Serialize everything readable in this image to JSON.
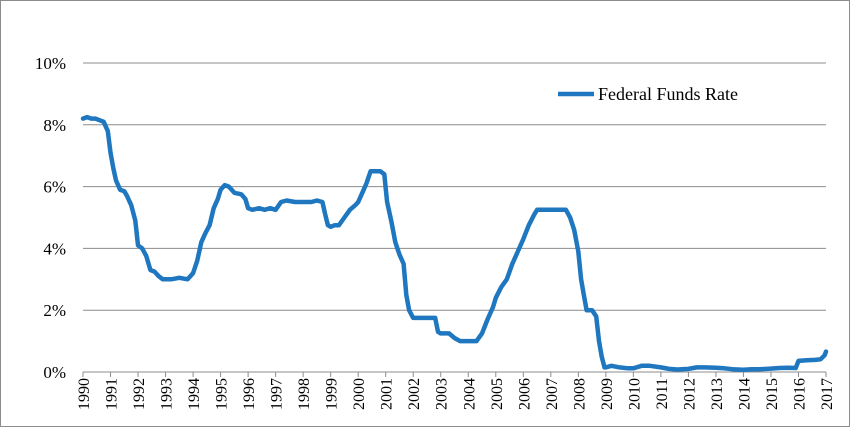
{
  "chart_data": {
    "type": "line",
    "title": "",
    "xlabel": "",
    "ylabel": "",
    "xlim": [
      1990,
      2017
    ],
    "ylim": [
      0,
      10
    ],
    "y_ticks": [
      0,
      2,
      4,
      6,
      8,
      10
    ],
    "y_tick_labels": [
      "0%",
      "2%",
      "4%",
      "6%",
      "8%",
      "10%"
    ],
    "x_ticks": [
      1990,
      1991,
      1992,
      1993,
      1994,
      1995,
      1996,
      1997,
      1998,
      1999,
      2000,
      2001,
      2002,
      2003,
      2004,
      2005,
      2006,
      2007,
      2008,
      2009,
      2010,
      2011,
      2012,
      2013,
      2014,
      2015,
      2016,
      2017
    ],
    "x_tick_labels": [
      "1990",
      "1991",
      "1992",
      "1993",
      "1994",
      "1995",
      "1996",
      "1997",
      "1998",
      "1999",
      "2000",
      "2001",
      "2002",
      "2003",
      "2004",
      "2005",
      "2006",
      "2007",
      "2008",
      "2009",
      "2010",
      "2011",
      "2012",
      "2013",
      "2014",
      "2015",
      "2016",
      "2017"
    ],
    "grid": "horizontal",
    "legend_position": "top-right",
    "series": [
      {
        "name": "Federal Funds Rate",
        "color": "#1f77c0",
        "points": [
          [
            1990.0,
            8.2
          ],
          [
            1990.15,
            8.25
          ],
          [
            1990.3,
            8.2
          ],
          [
            1990.45,
            8.2
          ],
          [
            1990.6,
            8.15
          ],
          [
            1990.75,
            8.1
          ],
          [
            1990.9,
            7.8
          ],
          [
            1991.0,
            7.1
          ],
          [
            1991.1,
            6.6
          ],
          [
            1991.2,
            6.2
          ],
          [
            1991.35,
            5.9
          ],
          [
            1991.5,
            5.85
          ],
          [
            1991.6,
            5.7
          ],
          [
            1991.75,
            5.4
          ],
          [
            1991.9,
            4.9
          ],
          [
            1992.0,
            4.1
          ],
          [
            1992.15,
            4.0
          ],
          [
            1992.3,
            3.75
          ],
          [
            1992.45,
            3.3
          ],
          [
            1992.6,
            3.25
          ],
          [
            1992.75,
            3.1
          ],
          [
            1992.9,
            3.0
          ],
          [
            1993.0,
            3.0
          ],
          [
            1993.2,
            3.0
          ],
          [
            1993.5,
            3.05
          ],
          [
            1993.8,
            3.0
          ],
          [
            1994.0,
            3.2
          ],
          [
            1994.15,
            3.6
          ],
          [
            1994.3,
            4.2
          ],
          [
            1994.45,
            4.5
          ],
          [
            1994.6,
            4.75
          ],
          [
            1994.75,
            5.3
          ],
          [
            1994.9,
            5.6
          ],
          [
            1995.0,
            5.9
          ],
          [
            1995.15,
            6.05
          ],
          [
            1995.3,
            6.0
          ],
          [
            1995.5,
            5.8
          ],
          [
            1995.75,
            5.75
          ],
          [
            1995.9,
            5.6
          ],
          [
            1996.0,
            5.3
          ],
          [
            1996.15,
            5.25
          ],
          [
            1996.4,
            5.3
          ],
          [
            1996.6,
            5.25
          ],
          [
            1996.8,
            5.3
          ],
          [
            1997.0,
            5.25
          ],
          [
            1997.2,
            5.5
          ],
          [
            1997.4,
            5.55
          ],
          [
            1997.7,
            5.5
          ],
          [
            1998.0,
            5.5
          ],
          [
            1998.3,
            5.5
          ],
          [
            1998.5,
            5.55
          ],
          [
            1998.7,
            5.5
          ],
          [
            1998.8,
            5.1
          ],
          [
            1998.9,
            4.75
          ],
          [
            1999.0,
            4.7
          ],
          [
            1999.15,
            4.75
          ],
          [
            1999.3,
            4.75
          ],
          [
            1999.5,
            5.0
          ],
          [
            1999.7,
            5.25
          ],
          [
            1999.9,
            5.4
          ],
          [
            2000.0,
            5.5
          ],
          [
            2000.15,
            5.8
          ],
          [
            2000.3,
            6.1
          ],
          [
            2000.45,
            6.5
          ],
          [
            2000.6,
            6.5
          ],
          [
            2000.8,
            6.5
          ],
          [
            2000.95,
            6.4
          ],
          [
            2001.05,
            5.5
          ],
          [
            2001.2,
            4.9
          ],
          [
            2001.35,
            4.2
          ],
          [
            2001.5,
            3.8
          ],
          [
            2001.65,
            3.5
          ],
          [
            2001.75,
            2.5
          ],
          [
            2001.85,
            2.0
          ],
          [
            2002.0,
            1.75
          ],
          [
            2002.3,
            1.75
          ],
          [
            2002.6,
            1.75
          ],
          [
            2002.8,
            1.75
          ],
          [
            2002.9,
            1.3
          ],
          [
            2003.0,
            1.25
          ],
          [
            2003.3,
            1.25
          ],
          [
            2003.5,
            1.1
          ],
          [
            2003.7,
            1.0
          ],
          [
            2004.0,
            1.0
          ],
          [
            2004.3,
            1.0
          ],
          [
            2004.5,
            1.25
          ],
          [
            2004.7,
            1.7
          ],
          [
            2004.9,
            2.1
          ],
          [
            2005.0,
            2.4
          ],
          [
            2005.2,
            2.75
          ],
          [
            2005.4,
            3.0
          ],
          [
            2005.6,
            3.5
          ],
          [
            2005.8,
            3.9
          ],
          [
            2006.0,
            4.3
          ],
          [
            2006.2,
            4.75
          ],
          [
            2006.4,
            5.1
          ],
          [
            2006.5,
            5.25
          ],
          [
            2006.8,
            5.25
          ],
          [
            2007.0,
            5.25
          ],
          [
            2007.3,
            5.25
          ],
          [
            2007.55,
            5.25
          ],
          [
            2007.7,
            5.0
          ],
          [
            2007.85,
            4.6
          ],
          [
            2008.0,
            3.9
          ],
          [
            2008.1,
            3.0
          ],
          [
            2008.2,
            2.5
          ],
          [
            2008.3,
            2.0
          ],
          [
            2008.5,
            2.0
          ],
          [
            2008.65,
            1.8
          ],
          [
            2008.75,
            1.0
          ],
          [
            2008.85,
            0.5
          ],
          [
            2008.95,
            0.15
          ],
          [
            2009.0,
            0.15
          ],
          [
            2009.2,
            0.2
          ],
          [
            2009.5,
            0.15
          ],
          [
            2009.8,
            0.12
          ],
          [
            2010.0,
            0.12
          ],
          [
            2010.3,
            0.2
          ],
          [
            2010.6,
            0.2
          ],
          [
            2011.0,
            0.15
          ],
          [
            2011.3,
            0.1
          ],
          [
            2011.6,
            0.08
          ],
          [
            2012.0,
            0.1
          ],
          [
            2012.3,
            0.15
          ],
          [
            2012.6,
            0.15
          ],
          [
            2013.0,
            0.14
          ],
          [
            2013.3,
            0.12
          ],
          [
            2013.6,
            0.09
          ],
          [
            2014.0,
            0.07
          ],
          [
            2014.3,
            0.09
          ],
          [
            2014.6,
            0.09
          ],
          [
            2015.0,
            0.11
          ],
          [
            2015.3,
            0.13
          ],
          [
            2015.6,
            0.14
          ],
          [
            2015.9,
            0.13
          ],
          [
            2016.0,
            0.36
          ],
          [
            2016.3,
            0.38
          ],
          [
            2016.6,
            0.39
          ],
          [
            2016.8,
            0.41
          ],
          [
            2016.95,
            0.54
          ],
          [
            2017.0,
            0.66
          ]
        ]
      }
    ]
  }
}
